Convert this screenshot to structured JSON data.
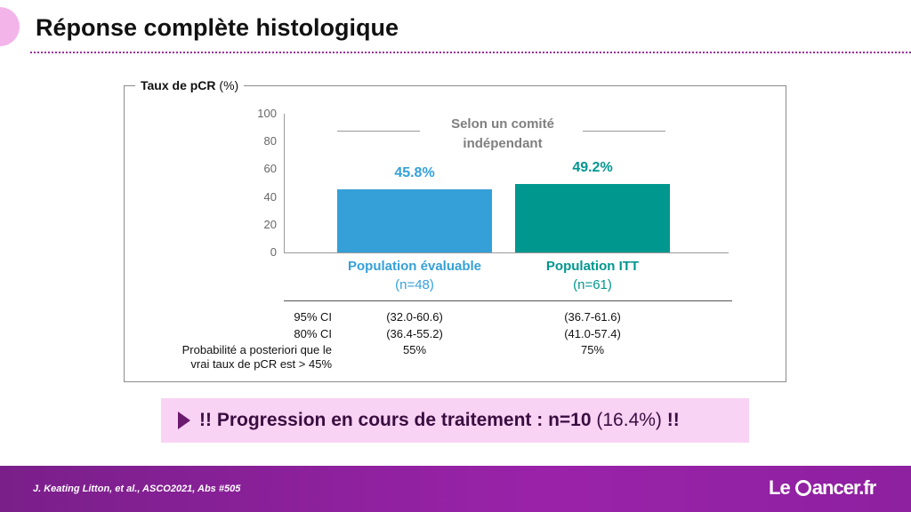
{
  "slide": {
    "title": "Réponse complète histologique"
  },
  "chart_panel": {
    "label_bold": "Taux de pCR",
    "label_unit": "(%)"
  },
  "chart_data": {
    "type": "bar",
    "ylabel": "Taux de pCR (%)",
    "ylim": [
      0,
      100
    ],
    "yticks": [
      0,
      20,
      40,
      60,
      80,
      100
    ],
    "categories": [
      "Population évaluable",
      "Population ITT"
    ],
    "category_counts": [
      "(n=48)",
      "(n=61)"
    ],
    "values": [
      45.8,
      49.2
    ],
    "value_labels": [
      "45.8%",
      "49.2%"
    ],
    "colors": [
      "#35a0d8",
      "#00978f"
    ],
    "annotation": [
      "Selon un comité",
      "indépendant"
    ],
    "grid": false
  },
  "stats": {
    "rows": [
      {
        "label": [
          "95% CI"
        ],
        "values": [
          "(32.0-60.6)",
          "(36.7-61.6)"
        ]
      },
      {
        "label": [
          "80% CI"
        ],
        "values": [
          "(36.4-55.2)",
          "(41.0-57.4)"
        ]
      },
      {
        "label": [
          "Probabilité a posteriori que le",
          "vrai taux de pCR est > 45%"
        ],
        "values": [
          "55%",
          "75%"
        ]
      }
    ]
  },
  "banner": {
    "part1": "!! Progression en cours de traitement : ",
    "part2": "n=10",
    "part3": " (16.4%) ",
    "part4": "!!"
  },
  "footer": {
    "reference": "J. Keating Litton, et al.,  ASCO2021, Abs #505",
    "brand_left": "Le ",
    "brand_right": "ancer.fr"
  },
  "colors": {
    "accent_purple": "#8e21a0",
    "banner_bg": "#f8d3f4",
    "bar1": "#35a0d8",
    "bar2": "#00978f"
  }
}
